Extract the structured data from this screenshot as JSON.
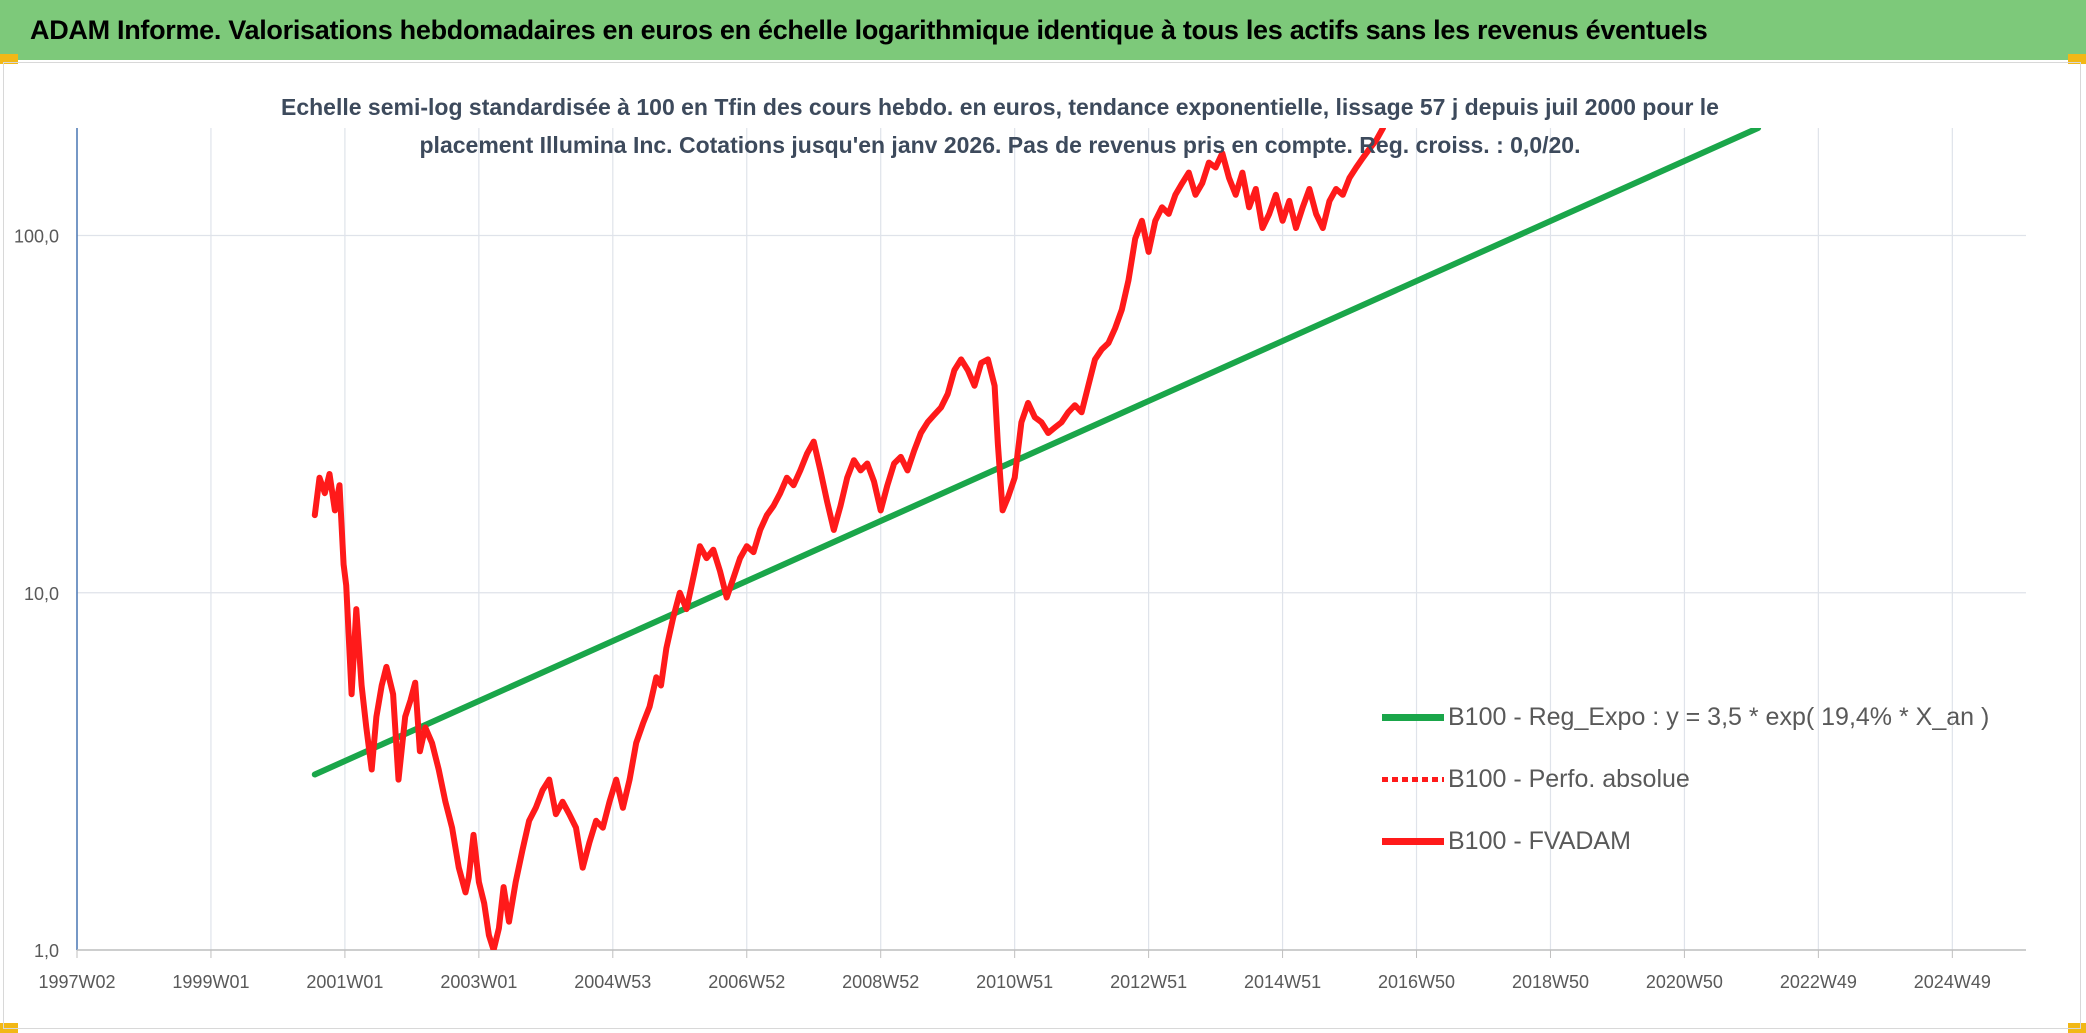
{
  "header": {
    "title": "ADAM Informe. Valorisations hebdomadaires en euros en échelle logarithmique identique à tous les actifs sans les revenus éventuels"
  },
  "colors": {
    "title_bg": "#7dc97a",
    "trend": "#1aa64a",
    "series": "#ff1a1a",
    "accent_corner": "#f2b816"
  },
  "chart_data": {
    "type": "line",
    "subtitle_line1": "Echelle semi-log standardisée à 100 en Tfin des cours hebdo. en euros, tendance exponentielle, lissage 57 j depuis juil 2000 pour le",
    "subtitle_line2": "placement Illumina Inc. Cotations jusqu'en janv 2026. Pas de revenus pris en compte. Reg. croiss. : 0,0/20.",
    "y_scale": "log",
    "ylim": [
      1,
      200
    ],
    "xlim": [
      1997.0,
      2026.1
    ],
    "grid": true,
    "legend_position": "bottom-right",
    "y_ticks": [
      {
        "value": 1,
        "label": "1,0"
      },
      {
        "value": 10,
        "label": "10,0"
      },
      {
        "value": 100,
        "label": "100,0"
      }
    ],
    "x_ticks": [
      {
        "value": 1997.0,
        "label": "1997W02"
      },
      {
        "value": 1999.0,
        "label": "1999W01"
      },
      {
        "value": 2001.0,
        "label": "2001W01"
      },
      {
        "value": 2003.0,
        "label": "2003W01"
      },
      {
        "value": 2005.0,
        "label": "2004W53"
      },
      {
        "value": 2007.0,
        "label": "2006W52"
      },
      {
        "value": 2009.0,
        "label": "2008W52"
      },
      {
        "value": 2011.0,
        "label": "2010W51"
      },
      {
        "value": 2013.0,
        "label": "2012W51"
      },
      {
        "value": 2015.0,
        "label": "2014W51"
      },
      {
        "value": 2017.0,
        "label": "2016W50"
      },
      {
        "value": 2019.0,
        "label": "2018W50"
      },
      {
        "value": 2021.0,
        "label": "2020W50"
      },
      {
        "value": 2023.0,
        "label": "2022W49"
      },
      {
        "value": 2025.0,
        "label": "2024W49"
      }
    ],
    "series": [
      {
        "name": "B100 - Reg_Expo : y = 3,5 * exp( 19,4% * X_an )",
        "style": "solid",
        "color": "#1aa64a",
        "points": [
          [
            2000.55,
            3.1
          ],
          [
            2022.1,
            200
          ]
        ]
      },
      {
        "name": "B100 - Perfo. absolue",
        "style": "dotted",
        "color": "#ff1a1a",
        "points": []
      },
      {
        "name": "B100 - FVADAM",
        "style": "solid",
        "color": "#ff1a1a",
        "points": [
          [
            2000.55,
            16.5
          ],
          [
            2000.62,
            21
          ],
          [
            2000.7,
            19
          ],
          [
            2000.77,
            21.5
          ],
          [
            2000.85,
            17
          ],
          [
            2000.92,
            20
          ],
          [
            2000.98,
            12
          ],
          [
            2001.02,
            10.5
          ],
          [
            2001.1,
            5.2
          ],
          [
            2001.17,
            9
          ],
          [
            2001.25,
            5.5
          ],
          [
            2001.32,
            4.2
          ],
          [
            2001.4,
            3.2
          ],
          [
            2001.47,
            4.5
          ],
          [
            2001.55,
            5.5
          ],
          [
            2001.62,
            6.2
          ],
          [
            2001.72,
            5.2
          ],
          [
            2001.8,
            3.0
          ],
          [
            2001.9,
            4.5
          ],
          [
            2001.98,
            5.0
          ],
          [
            2002.05,
            5.6
          ],
          [
            2002.12,
            3.6
          ],
          [
            2002.2,
            4.2
          ],
          [
            2002.3,
            3.8
          ],
          [
            2002.4,
            3.2
          ],
          [
            2002.5,
            2.6
          ],
          [
            2002.6,
            2.2
          ],
          [
            2002.7,
            1.7
          ],
          [
            2002.8,
            1.45
          ],
          [
            2002.85,
            1.6
          ],
          [
            2002.92,
            2.1
          ],
          [
            2003.0,
            1.55
          ],
          [
            2003.08,
            1.35
          ],
          [
            2003.15,
            1.1
          ],
          [
            2003.22,
            1.0
          ],
          [
            2003.3,
            1.15
          ],
          [
            2003.37,
            1.5
          ],
          [
            2003.45,
            1.2
          ],
          [
            2003.55,
            1.55
          ],
          [
            2003.65,
            1.9
          ],
          [
            2003.75,
            2.3
          ],
          [
            2003.85,
            2.5
          ],
          [
            2003.95,
            2.8
          ],
          [
            2004.05,
            3.0
          ],
          [
            2004.15,
            2.4
          ],
          [
            2004.25,
            2.6
          ],
          [
            2004.35,
            2.4
          ],
          [
            2004.45,
            2.2
          ],
          [
            2004.55,
            1.7
          ],
          [
            2004.65,
            2.0
          ],
          [
            2004.75,
            2.3
          ],
          [
            2004.85,
            2.2
          ],
          [
            2004.95,
            2.6
          ],
          [
            2005.05,
            3.0
          ],
          [
            2005.15,
            2.5
          ],
          [
            2005.25,
            3.0
          ],
          [
            2005.35,
            3.8
          ],
          [
            2005.45,
            4.3
          ],
          [
            2005.55,
            4.8
          ],
          [
            2005.65,
            5.8
          ],
          [
            2005.72,
            5.5
          ],
          [
            2005.8,
            7.0
          ],
          [
            2005.9,
            8.5
          ],
          [
            2006.0,
            10.0
          ],
          [
            2006.1,
            9.0
          ],
          [
            2006.2,
            11.0
          ],
          [
            2006.3,
            13.5
          ],
          [
            2006.4,
            12.5
          ],
          [
            2006.5,
            13.2
          ],
          [
            2006.6,
            11.5
          ],
          [
            2006.7,
            9.7
          ],
          [
            2006.8,
            11.0
          ],
          [
            2006.9,
            12.5
          ],
          [
            2007.0,
            13.5
          ],
          [
            2007.1,
            13.0
          ],
          [
            2007.2,
            15.0
          ],
          [
            2007.3,
            16.5
          ],
          [
            2007.4,
            17.5
          ],
          [
            2007.5,
            19.0
          ],
          [
            2007.6,
            21.0
          ],
          [
            2007.7,
            20.0
          ],
          [
            2007.8,
            22.0
          ],
          [
            2007.9,
            24.5
          ],
          [
            2008.0,
            26.5
          ],
          [
            2008.1,
            22.0
          ],
          [
            2008.2,
            18.0
          ],
          [
            2008.3,
            15.0
          ],
          [
            2008.4,
            17.5
          ],
          [
            2008.5,
            21.0
          ],
          [
            2008.6,
            23.5
          ],
          [
            2008.7,
            22.0
          ],
          [
            2008.8,
            23.0
          ],
          [
            2008.9,
            20.5
          ],
          [
            2009.0,
            17.0
          ],
          [
            2009.1,
            20.0
          ],
          [
            2009.2,
            23.0
          ],
          [
            2009.3,
            24.0
          ],
          [
            2009.4,
            22.0
          ],
          [
            2009.5,
            25.0
          ],
          [
            2009.6,
            28.0
          ],
          [
            2009.7,
            30.0
          ],
          [
            2009.8,
            31.5
          ],
          [
            2009.9,
            33.0
          ],
          [
            2010.0,
            36.0
          ],
          [
            2010.1,
            42.0
          ],
          [
            2010.2,
            45.0
          ],
          [
            2010.3,
            42.0
          ],
          [
            2010.4,
            38.0
          ],
          [
            2010.5,
            44.0
          ],
          [
            2010.6,
            45.0
          ],
          [
            2010.7,
            38.0
          ],
          [
            2010.75,
            26.0
          ],
          [
            2010.82,
            17.0
          ],
          [
            2010.9,
            18.5
          ],
          [
            2011.0,
            21.0
          ],
          [
            2011.1,
            30.0
          ],
          [
            2011.2,
            34.0
          ],
          [
            2011.3,
            31.0
          ],
          [
            2011.4,
            30.0
          ],
          [
            2011.5,
            28.0
          ],
          [
            2011.6,
            29.0
          ],
          [
            2011.7,
            30.0
          ],
          [
            2011.8,
            32.0
          ],
          [
            2011.9,
            33.5
          ],
          [
            2012.0,
            32.0
          ],
          [
            2012.1,
            38.0
          ],
          [
            2012.2,
            45.0
          ],
          [
            2012.3,
            48.0
          ],
          [
            2012.4,
            50.0
          ],
          [
            2012.5,
            55.0
          ],
          [
            2012.6,
            62.0
          ],
          [
            2012.7,
            75.0
          ],
          [
            2012.8,
            98.0
          ],
          [
            2012.9,
            110.0
          ],
          [
            2013.0,
            90.0
          ],
          [
            2013.1,
            110.0
          ],
          [
            2013.2,
            120.0
          ],
          [
            2013.3,
            115.0
          ],
          [
            2013.4,
            130.0
          ],
          [
            2013.5,
            140.0
          ],
          [
            2013.6,
            150.0
          ],
          [
            2013.7,
            130.0
          ],
          [
            2013.8,
            140.0
          ],
          [
            2013.9,
            160.0
          ],
          [
            2014.0,
            155.0
          ],
          [
            2014.1,
            170.0
          ],
          [
            2014.2,
            145.0
          ],
          [
            2014.3,
            130.0
          ],
          [
            2014.4,
            150.0
          ],
          [
            2014.5,
            120.0
          ],
          [
            2014.6,
            135.0
          ],
          [
            2014.7,
            105.0
          ],
          [
            2014.8,
            115.0
          ],
          [
            2014.9,
            130.0
          ],
          [
            2015.0,
            110.0
          ],
          [
            2015.1,
            125.0
          ],
          [
            2015.2,
            105.0
          ],
          [
            2015.3,
            120.0
          ],
          [
            2015.4,
            135.0
          ],
          [
            2015.5,
            115.0
          ],
          [
            2015.6,
            105.0
          ],
          [
            2015.7,
            125.0
          ],
          [
            2015.8,
            135.0
          ],
          [
            2015.9,
            130.0
          ],
          [
            2016.0,
            145.0
          ],
          [
            2016.1,
            155.0
          ],
          [
            2016.2,
            165.0
          ],
          [
            2016.3,
            175.0
          ],
          [
            2016.4,
            185.0
          ],
          [
            2016.5,
            200.0
          ]
        ]
      }
    ]
  }
}
